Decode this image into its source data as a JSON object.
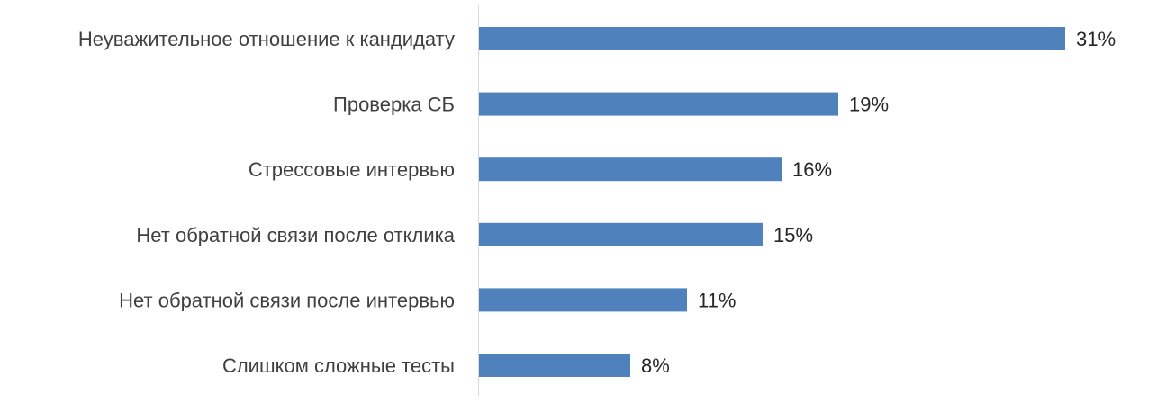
{
  "chart_data": {
    "type": "bar",
    "orientation": "horizontal",
    "categories": [
      "Неуважительное отношение к кандидату",
      "Проверка СБ",
      "Стрессовые интервью",
      "Нет обратной связи после отклика",
      "Нет обратной связи после интервью",
      "Слишком сложные тесты"
    ],
    "values": [
      31,
      19,
      16,
      15,
      11,
      8
    ],
    "data_labels": [
      "31%",
      "19%",
      "16%",
      "15%",
      "11%",
      "8%"
    ],
    "unit": "%",
    "xlim": [
      0,
      35
    ],
    "grid": false,
    "legend": "none",
    "bar_color": "#4f81bd",
    "axis_color": "#d9d9d9"
  }
}
